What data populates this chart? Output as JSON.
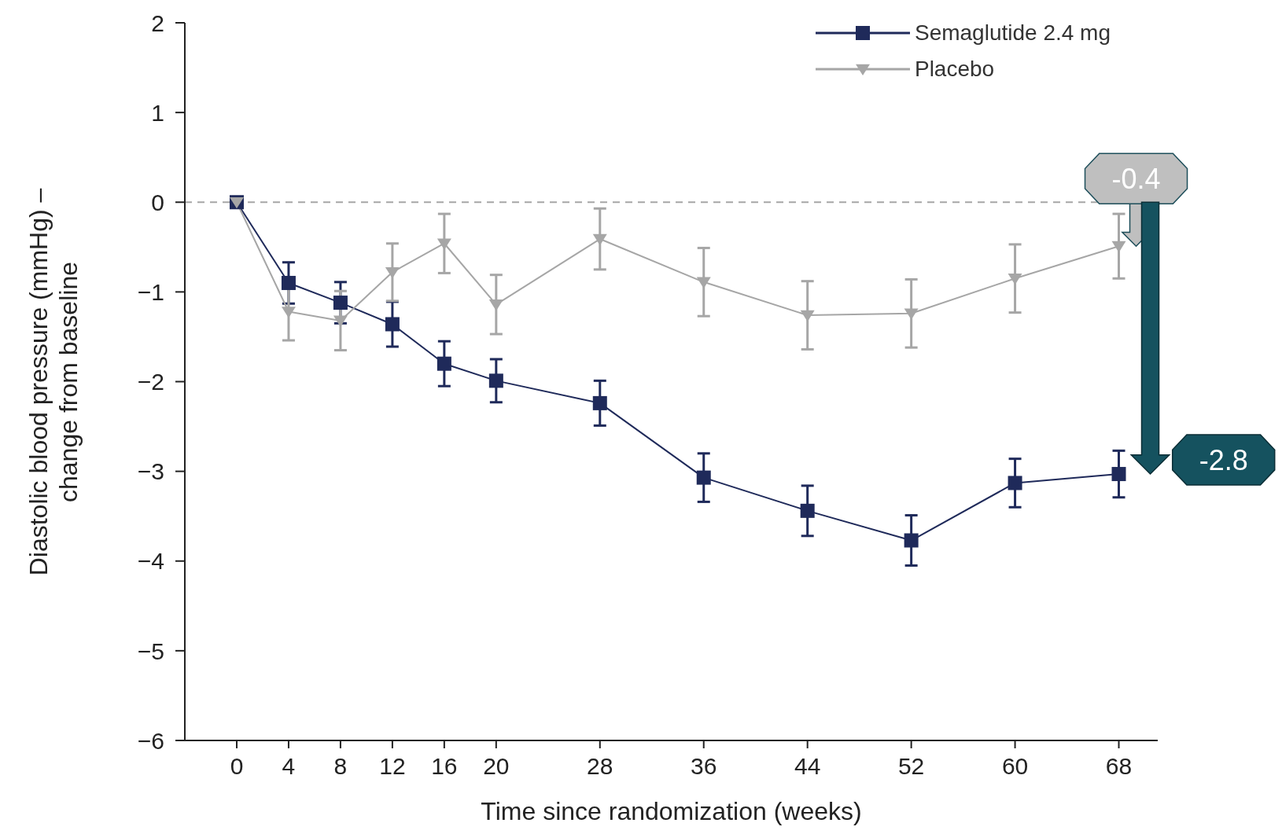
{
  "chart_data": {
    "type": "line",
    "xlabel": "Time since randomization (weeks)",
    "ylabel": "Diastolic blood pressure (mmHg) – change from baseline",
    "x": [
      0,
      4,
      8,
      12,
      16,
      20,
      28,
      36,
      44,
      52,
      60,
      68
    ],
    "series": [
      {
        "name": "Semaglutide 2.4 mg",
        "color": "#1f2a5a",
        "marker": "square",
        "values": [
          0,
          -0.9,
          -1.12,
          -1.36,
          -1.8,
          -1.99,
          -2.24,
          -3.07,
          -3.44,
          -3.77,
          -3.13,
          -3.03
        ],
        "errors": [
          null,
          0.23,
          0.23,
          0.25,
          0.25,
          0.24,
          0.25,
          0.27,
          0.28,
          0.28,
          0.27,
          0.26
        ]
      },
      {
        "name": "Placebo",
        "color": "#a6a6a6",
        "marker": "triangle",
        "values": [
          0,
          -1.22,
          -1.32,
          -0.78,
          -0.46,
          -1.14,
          -0.41,
          -0.89,
          -1.26,
          -1.24,
          -0.85,
          -0.49
        ],
        "errors": [
          null,
          0.32,
          0.33,
          0.32,
          0.33,
          0.33,
          0.34,
          0.38,
          0.38,
          0.38,
          0.38,
          0.36
        ]
      }
    ],
    "xlim": [
      -4,
      71
    ],
    "xticks": [
      0,
      4,
      8,
      12,
      16,
      20,
      28,
      36,
      44,
      52,
      60,
      68
    ],
    "ylim": [
      -6,
      2
    ],
    "yticks": [
      {
        "value": -6,
        "label": "−6"
      },
      {
        "value": -5,
        "label": "−5"
      },
      {
        "value": -4,
        "label": "−4"
      },
      {
        "value": -3,
        "label": "−3"
      },
      {
        "value": -2,
        "label": "−2"
      },
      {
        "value": -1,
        "label": "−1"
      },
      0,
      1,
      2
    ],
    "ref_lines": [
      {
        "axis": "y",
        "value": 0,
        "label": null,
        "color": "#a6a6a6",
        "line_style": "dashed"
      }
    ],
    "annotations": [
      "-0.4",
      "-2.8"
    ],
    "grid": false,
    "legend": "top right"
  }
}
